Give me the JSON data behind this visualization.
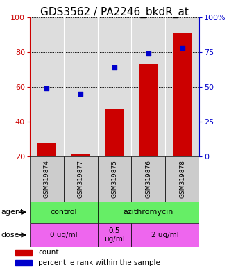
{
  "title": "GDS3562 / PA2246_bkdR_at",
  "samples": [
    "GSM319874",
    "GSM319877",
    "GSM319875",
    "GSM319876",
    "GSM319878"
  ],
  "counts": [
    28,
    21,
    47,
    73,
    91
  ],
  "percentiles": [
    49,
    45,
    64,
    74,
    78
  ],
  "ylim_left": [
    20,
    100
  ],
  "ylim_right": [
    0,
    100
  ],
  "yticks_left": [
    20,
    40,
    60,
    80,
    100
  ],
  "yticks_right": [
    0,
    25,
    50,
    75,
    100
  ],
  "yticklabels_right": [
    "0",
    "25",
    "50",
    "75",
    "100%"
  ],
  "bar_color": "#cc0000",
  "dot_color": "#0000cc",
  "agent_color": "#66ee66",
  "dose_color": "#ee66ee",
  "legend_count_label": "count",
  "legend_pct_label": "percentile rank within the sample",
  "background_color": "#ffffff",
  "plot_bg_color": "#dddddd",
  "title_fontsize": 11,
  "tick_fontsize": 8,
  "sample_fontsize": 6.5,
  "row_fontsize": 8
}
